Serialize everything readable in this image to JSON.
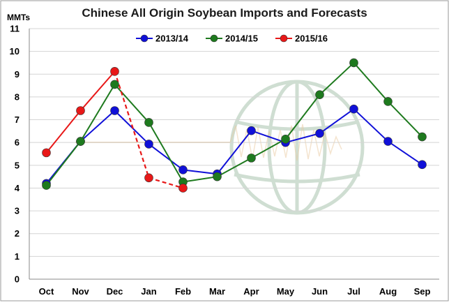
{
  "chart_data": {
    "type": "line",
    "title": "Chinese All Origin Soybean Imports and Forecasts",
    "ylabel": "MMTs",
    "xlabel": "",
    "ylim": [
      0,
      11
    ],
    "yticks": [
      "0",
      "1",
      "2",
      "3",
      "4",
      "5",
      "6",
      "7",
      "8",
      "9",
      "10",
      "11"
    ],
    "categories": [
      "Oct",
      "Nov",
      "Dec",
      "Jan",
      "Feb",
      "Mar",
      "Apr",
      "May",
      "Jun",
      "Jul",
      "Aug",
      "Sep"
    ],
    "grid": "horizontal",
    "legend_position": "top",
    "series": [
      {
        "name": "2013/14",
        "color": "#1010d8",
        "style": "solid",
        "values": [
          4.2,
          6.05,
          7.4,
          5.93,
          4.8,
          4.62,
          6.52,
          6.0,
          6.4,
          7.47,
          6.05,
          5.03
        ]
      },
      {
        "name": "2014/15",
        "color": "#1e7a1e",
        "style": "solid",
        "values": [
          4.12,
          6.05,
          8.55,
          6.88,
          4.27,
          4.5,
          5.32,
          6.15,
          8.1,
          9.5,
          7.8,
          6.25
        ]
      },
      {
        "name": "2015/16",
        "color": "#e81818",
        "style": "solid-then-dashed",
        "dashed_from_index": 2,
        "values": [
          5.55,
          7.4,
          9.12,
          4.45,
          4.0,
          null,
          null,
          null,
          null,
          null,
          null,
          null
        ]
      }
    ]
  }
}
